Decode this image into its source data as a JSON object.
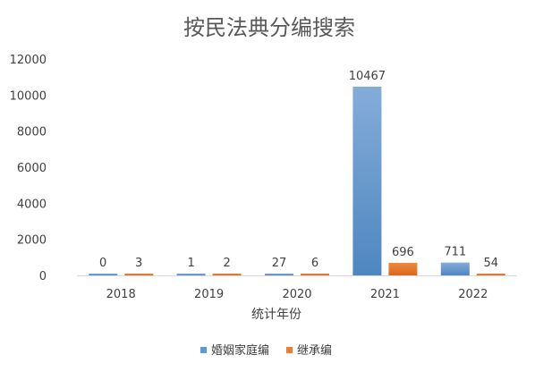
{
  "chart_data": {
    "type": "bar",
    "title": "按民法典分编搜索",
    "xlabel": "统计年份",
    "ylabel": "",
    "categories": [
      "2018",
      "2019",
      "2020",
      "2021",
      "2022"
    ],
    "series": [
      {
        "name": "婚姻家庭编",
        "values": [
          0,
          1,
          27,
          10467,
          711
        ],
        "color": "#5b9bd5"
      },
      {
        "name": "继承编",
        "values": [
          3,
          2,
          6,
          696,
          54
        ],
        "color": "#ed7d31"
      }
    ],
    "ylim": [
      0,
      12000
    ],
    "yticks": [
      0,
      2000,
      4000,
      6000,
      8000,
      10000,
      12000
    ],
    "grid": false,
    "legend_position": "bottom"
  }
}
